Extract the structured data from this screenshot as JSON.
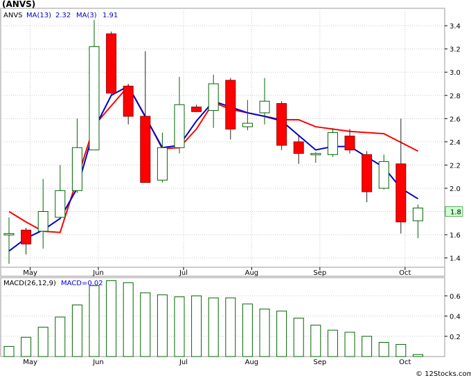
{
  "header": {
    "ticker_label": "(ANVS)"
  },
  "watermark": "© 12Stocks.com",
  "chart_data": [
    {
      "type": "candlestick",
      "legend": [
        {
          "label": "ANVS",
          "color": "#000000"
        },
        {
          "label": "MA(13)",
          "value": "2.32",
          "color": "#0000cc"
        },
        {
          "label": "MA(3)",
          "value": "1.91",
          "color": "#0000cc"
        }
      ],
      "ylim": [
        1.32,
        3.55
      ],
      "yticks": [
        "1.4",
        "1.6",
        "1.8",
        "2.0",
        "2.2",
        "2.4",
        "2.6",
        "2.8",
        "3.0",
        "3.2",
        "3.4"
      ],
      "last_price_label": "1.8",
      "month_labels": [
        "May",
        "Jun",
        "Jul",
        "Aug",
        "Sep",
        "Oct"
      ],
      "month_indices": [
        1,
        5,
        10,
        14,
        18,
        23
      ],
      "colors": {
        "up_fill": "#ffffff",
        "up_stroke": "#006400",
        "down_fill": "#ff0000",
        "down_stroke": "#990000",
        "ma_short": "#ff0000",
        "ma_long": "#0000cc",
        "grid": "#c8c8c8",
        "last_label_bg": "#ccffcc"
      },
      "candles": [
        {
          "o": 1.6,
          "h": 1.75,
          "l": 1.35,
          "c": 1.61
        },
        {
          "o": 1.64,
          "h": 1.66,
          "l": 1.43,
          "c": 1.52
        },
        {
          "o": 1.63,
          "h": 2.08,
          "l": 1.48,
          "c": 1.8
        },
        {
          "o": 1.75,
          "h": 2.2,
          "l": 1.73,
          "c": 1.98
        },
        {
          "o": 1.98,
          "h": 2.6,
          "l": 1.96,
          "c": 2.35
        },
        {
          "o": 2.33,
          "h": 3.45,
          "l": 2.33,
          "c": 3.22
        },
        {
          "o": 3.33,
          "h": 3.35,
          "l": 2.79,
          "c": 2.82
        },
        {
          "o": 2.88,
          "h": 2.9,
          "l": 2.55,
          "c": 2.62
        },
        {
          "o": 2.62,
          "h": 3.18,
          "l": 2.05,
          "c": 2.05
        },
        {
          "o": 2.07,
          "h": 2.48,
          "l": 2.05,
          "c": 2.35
        },
        {
          "o": 2.35,
          "h": 2.96,
          "l": 2.3,
          "c": 2.72
        },
        {
          "o": 2.7,
          "h": 2.72,
          "l": 2.66,
          "c": 2.66
        },
        {
          "o": 2.67,
          "h": 2.98,
          "l": 2.52,
          "c": 2.9
        },
        {
          "o": 2.93,
          "h": 2.95,
          "l": 2.42,
          "c": 2.51
        },
        {
          "o": 2.53,
          "h": 2.76,
          "l": 2.5,
          "c": 2.56
        },
        {
          "o": 2.65,
          "h": 2.95,
          "l": 2.55,
          "c": 2.75
        },
        {
          "o": 2.73,
          "h": 2.75,
          "l": 2.33,
          "c": 2.37
        },
        {
          "o": 2.4,
          "h": 2.45,
          "l": 2.21,
          "c": 2.3
        },
        {
          "o": 2.29,
          "h": 2.31,
          "l": 2.22,
          "c": 2.3
        },
        {
          "o": 2.29,
          "h": 2.52,
          "l": 2.27,
          "c": 2.48
        },
        {
          "o": 2.45,
          "h": 2.51,
          "l": 2.3,
          "c": 2.33
        },
        {
          "o": 2.29,
          "h": 2.32,
          "l": 1.88,
          "c": 1.97
        },
        {
          "o": 2.0,
          "h": 2.29,
          "l": 1.99,
          "c": 2.23
        },
        {
          "o": 2.21,
          "h": 2.6,
          "l": 1.61,
          "c": 1.71
        },
        {
          "o": 1.72,
          "h": 1.86,
          "l": 1.57,
          "c": 1.83
        }
      ],
      "ma_short": [
        {
          "i": 0,
          "v": 1.8
        },
        {
          "i": 1,
          "v": 1.71
        },
        {
          "i": 2,
          "v": 1.63
        },
        {
          "i": 3,
          "v": 1.62
        },
        {
          "i": 5,
          "v": 2.54
        },
        {
          "i": 7,
          "v": 2.88
        },
        {
          "i": 8,
          "v": 2.62
        },
        {
          "i": 9,
          "v": 2.34
        },
        {
          "i": 10,
          "v": 2.35
        },
        {
          "i": 11,
          "v": 2.51
        },
        {
          "i": 12,
          "v": 2.74
        },
        {
          "i": 13,
          "v": 2.68
        },
        {
          "i": 14,
          "v": 2.65
        },
        {
          "i": 15,
          "v": 2.62
        },
        {
          "i": 16,
          "v": 2.59
        },
        {
          "i": 17,
          "v": 2.59
        },
        {
          "i": 18,
          "v": 2.53
        },
        {
          "i": 20,
          "v": 2.49
        },
        {
          "i": 22,
          "v": 2.47
        },
        {
          "i": 24,
          "v": 2.32
        }
      ],
      "ma_long": [
        {
          "i": 0,
          "v": 1.46
        },
        {
          "i": 1,
          "v": 1.57
        },
        {
          "i": 2,
          "v": 1.64
        },
        {
          "i": 3,
          "v": 1.74
        },
        {
          "i": 4,
          "v": 2.0
        },
        {
          "i": 5,
          "v": 2.51
        },
        {
          "i": 6,
          "v": 2.8
        },
        {
          "i": 7,
          "v": 2.88
        },
        {
          "i": 9,
          "v": 2.35
        },
        {
          "i": 10,
          "v": 2.37
        },
        {
          "i": 11,
          "v": 2.58
        },
        {
          "i": 12,
          "v": 2.75
        },
        {
          "i": 13,
          "v": 2.7
        },
        {
          "i": 14,
          "v": 2.65
        },
        {
          "i": 15,
          "v": 2.62
        },
        {
          "i": 16,
          "v": 2.58
        },
        {
          "i": 18,
          "v": 2.33
        },
        {
          "i": 19,
          "v": 2.36
        },
        {
          "i": 20,
          "v": 2.36
        },
        {
          "i": 22,
          "v": 2.18
        },
        {
          "i": 23,
          "v": 2.0
        },
        {
          "i": 24,
          "v": 1.91
        }
      ]
    },
    {
      "type": "bar",
      "legend": [
        {
          "label": "MACD(26,12,9)",
          "color": "#000000"
        },
        {
          "label": "MACD=0.02",
          "color": "#0000cc"
        }
      ],
      "ylim": [
        0,
        0.78
      ],
      "yticks": [
        "0.2",
        "0.4",
        "0.6"
      ],
      "month_labels": [
        "May",
        "Jun",
        "Jul",
        "Aug",
        "Sep",
        "Oct"
      ],
      "bar_color": "#006400",
      "values": [
        0.1,
        0.19,
        0.29,
        0.39,
        0.51,
        0.7,
        0.75,
        0.73,
        0.63,
        0.61,
        0.59,
        0.6,
        0.58,
        0.58,
        0.52,
        0.47,
        0.45,
        0.38,
        0.31,
        0.26,
        0.24,
        0.2,
        0.14,
        0.12,
        0.02
      ]
    }
  ]
}
